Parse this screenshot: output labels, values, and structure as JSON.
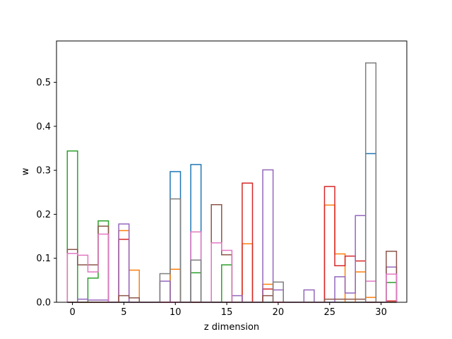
{
  "chart_data": {
    "type": "step",
    "xlabel": "z dimension",
    "ylabel": "w",
    "xlim": [
      -1.55,
      32.5
    ],
    "ylim": [
      0,
      0.594
    ],
    "xticks": [
      0,
      5,
      10,
      15,
      20,
      25,
      30
    ],
    "yticks": [
      0.0,
      0.1,
      0.2,
      0.3,
      0.4,
      0.5
    ],
    "ytick_labels": [
      "0.0",
      "0.1",
      "0.2",
      "0.3",
      "0.4",
      "0.5"
    ],
    "bins": [
      0,
      1,
      2,
      3,
      4,
      5,
      6,
      7,
      8,
      9,
      10,
      11,
      12,
      13,
      14,
      15,
      16,
      17,
      18,
      19,
      20,
      21,
      22,
      23,
      24,
      25,
      26,
      27,
      28,
      29,
      30,
      31
    ],
    "series": [
      {
        "color": "#1f77b4",
        "values": [
          0,
          0,
          0,
          0,
          0,
          0,
          0,
          0,
          0,
          0,
          0.297,
          0,
          0.313,
          0,
          0,
          0,
          0,
          0,
          0,
          0,
          0,
          0,
          0,
          0,
          0,
          0,
          0,
          0,
          0,
          0.338,
          0,
          0
        ]
      },
      {
        "color": "#ff7f0e",
        "values": [
          0,
          0,
          0,
          0,
          0,
          0.163,
          0.073,
          0,
          0,
          0,
          0.075,
          0,
          0,
          0,
          0,
          0,
          0,
          0.133,
          0,
          0.041,
          0,
          0,
          0,
          0,
          0,
          0.221,
          0.11,
          0,
          0.069,
          0.011,
          0,
          0
        ]
      },
      {
        "color": "#2ca02c",
        "values": [
          0.344,
          0,
          0.055,
          0.185,
          0,
          0,
          0,
          0,
          0,
          0,
          0,
          0,
          0.067,
          0,
          0,
          0.085,
          0,
          0,
          0,
          0,
          0,
          0,
          0,
          0,
          0,
          0,
          0,
          0,
          0,
          0,
          0,
          0.045
        ]
      },
      {
        "color": "#d62728",
        "values": [
          0,
          0,
          0,
          0,
          0,
          0.143,
          0,
          0,
          0,
          0,
          0,
          0,
          0,
          0,
          0,
          0,
          0,
          0.271,
          0,
          0.03,
          0,
          0,
          0,
          0,
          0,
          0.263,
          0.083,
          0.105,
          0.094,
          0,
          0,
          0.003
        ]
      },
      {
        "color": "#9467bd",
        "values": [
          0,
          0.007,
          0.005,
          0.005,
          0,
          0.178,
          0,
          0,
          0,
          0.048,
          0,
          0,
          0,
          0,
          0,
          0,
          0.015,
          0,
          0,
          0.301,
          0.028,
          0,
          0,
          0.028,
          0,
          0,
          0.058,
          0.021,
          0.197,
          0,
          0,
          0.08
        ]
      },
      {
        "color": "#8c564b",
        "values": [
          0.12,
          0.085,
          0.085,
          0.173,
          0,
          0.015,
          0.01,
          0,
          0,
          0,
          0,
          0,
          0,
          0,
          0.222,
          0.108,
          0,
          0,
          0,
          0.015,
          0,
          0,
          0,
          0,
          0,
          0.007,
          0.007,
          0.007,
          0.007,
          0,
          0,
          0.116
        ]
      },
      {
        "color": "#e377c2",
        "values": [
          0.111,
          0.107,
          0.069,
          0.155,
          0,
          0,
          0,
          0,
          0,
          0,
          0,
          0,
          0.16,
          0,
          0.135,
          0.118,
          0,
          0,
          0,
          0,
          0,
          0,
          0,
          0,
          0,
          0,
          0,
          0,
          0,
          0.048,
          0,
          0.064
        ]
      },
      {
        "color": "#7f7f7f",
        "values": [
          0,
          0,
          0,
          0,
          0,
          0,
          0,
          0,
          0,
          0.065,
          0.235,
          0,
          0.096,
          0,
          0,
          0,
          0,
          0,
          0,
          0,
          0.046,
          0,
          0,
          0,
          0,
          0,
          0,
          0,
          0,
          0.544,
          0,
          0
        ]
      }
    ],
    "grid": false,
    "legend": "none"
  }
}
